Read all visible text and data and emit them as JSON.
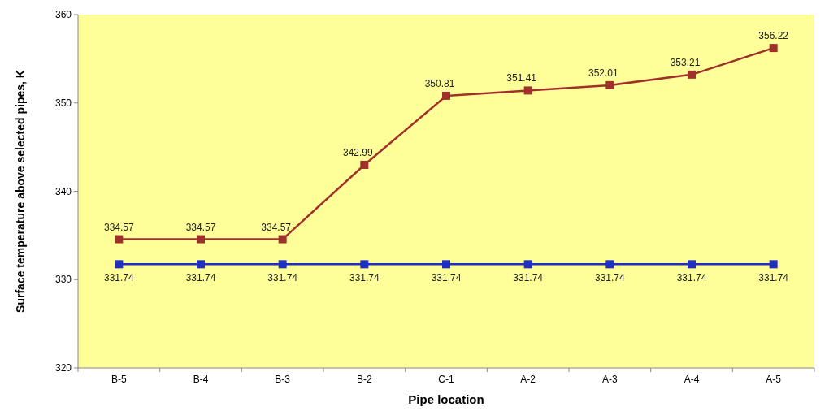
{
  "chart_data": {
    "type": "line",
    "xlabel": "Pipe location",
    "ylabel": "Surface temperature above selected pipes, K",
    "categories": [
      "B-5",
      "B-4",
      "B-3",
      "B-2",
      "C-1",
      "A-2",
      "A-3",
      "A-4",
      "A-5"
    ],
    "series": [
      {
        "color": "#a0302a",
        "values": [
          334.57,
          334.57,
          334.57,
          342.99,
          350.81,
          351.41,
          352.01,
          353.21,
          356.22
        ]
      },
      {
        "color": "#1f2fc0",
        "values": [
          331.74,
          331.74,
          331.74,
          331.74,
          331.74,
          331.74,
          331.74,
          331.74,
          331.74
        ]
      }
    ],
    "ylim": [
      320,
      360
    ],
    "yticks": [
      320,
      330,
      340,
      350,
      360
    ],
    "marker": "square",
    "line_style": "solid",
    "data_labels": true,
    "grid": false
  }
}
